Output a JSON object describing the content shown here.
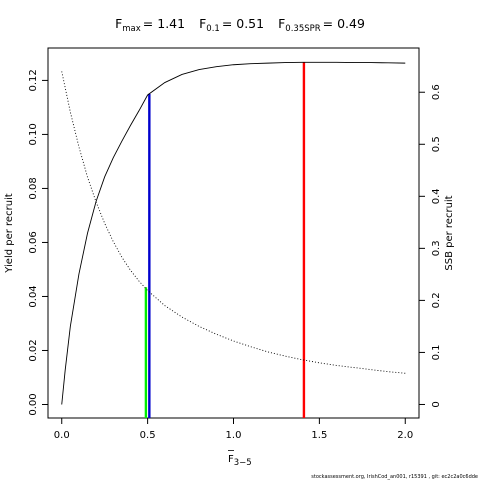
{
  "chart_data": {
    "type": "line",
    "title_parts": [
      {
        "label": "F",
        "sub": "max",
        "value": "= 1.41"
      },
      {
        "label": "F",
        "sub": "0.1",
        "value": "= 0.51"
      },
      {
        "label": "F",
        "sub": "0.35SPR",
        "value": "= 0.49"
      }
    ],
    "xlabel": "F",
    "xlabel_sub": "3−5",
    "ylabel_left": "Yield per recruit",
    "ylabel_right": "SSB per recruit",
    "xlim": [
      -0.08,
      2.08
    ],
    "ylim_left": [
      -0.005,
      0.132
    ],
    "ylim_right": [
      -0.026,
      0.685
    ],
    "x_ticks": [
      "0.0",
      "0.5",
      "1.0",
      "1.5",
      "2.0"
    ],
    "y_left_ticks": [
      "0.00",
      "0.02",
      "0.04",
      "0.06",
      "0.08",
      "0.10",
      "0.12"
    ],
    "y_right_ticks": [
      "0",
      "0.1",
      "0.2",
      "0.3",
      "0.4",
      "0.5",
      "0.6"
    ],
    "series": [
      {
        "axis": "left",
        "style": "solid",
        "x": [
          0.0,
          0.02,
          0.05,
          0.1,
          0.15,
          0.2,
          0.25,
          0.3,
          0.35,
          0.4,
          0.45,
          0.5,
          0.6,
          0.7,
          0.8,
          0.9,
          1.0,
          1.1,
          1.2,
          1.3,
          1.4,
          1.5,
          1.6,
          1.7,
          1.8,
          1.9,
          2.0
        ],
        "y": [
          0.0,
          0.0127,
          0.0289,
          0.0483,
          0.0634,
          0.0752,
          0.0843,
          0.0914,
          0.0975,
          0.1033,
          0.1088,
          0.1146,
          0.1192,
          0.1222,
          0.124,
          0.1251,
          0.1258,
          0.1262,
          0.1264,
          0.1266,
          0.1267,
          0.1267,
          0.1267,
          0.1266,
          0.1266,
          0.1265,
          0.1264
        ]
      },
      {
        "axis": "right",
        "style": "dotted",
        "x": [
          0.0,
          0.05,
          0.1,
          0.15,
          0.2,
          0.25,
          0.3,
          0.35,
          0.4,
          0.45,
          0.5,
          0.6,
          0.7,
          0.8,
          0.9,
          1.0,
          1.1,
          1.2,
          1.3,
          1.4,
          1.5,
          1.6,
          1.7,
          1.8,
          1.9,
          2.0
        ],
        "y": [
          0.64,
          0.562,
          0.495,
          0.437,
          0.389,
          0.348,
          0.313,
          0.283,
          0.258,
          0.237,
          0.219,
          0.19,
          0.168,
          0.15,
          0.135,
          0.122,
          0.111,
          0.101,
          0.093,
          0.086,
          0.08,
          0.075,
          0.071,
          0.067,
          0.063,
          0.06
        ]
      }
    ],
    "reference_lines": [
      {
        "x": 1.41,
        "y": 0.1267,
        "color": "#ff0000"
      },
      {
        "x": 0.51,
        "y": 0.115,
        "color": "#0000cd"
      },
      {
        "x": 0.49,
        "y": 0.0434,
        "color": "#00ee00"
      }
    ]
  },
  "footer": "stockassessment.org,  IrishCod_an001,  r15391  ,  git:  ec2c2a0c6dde"
}
